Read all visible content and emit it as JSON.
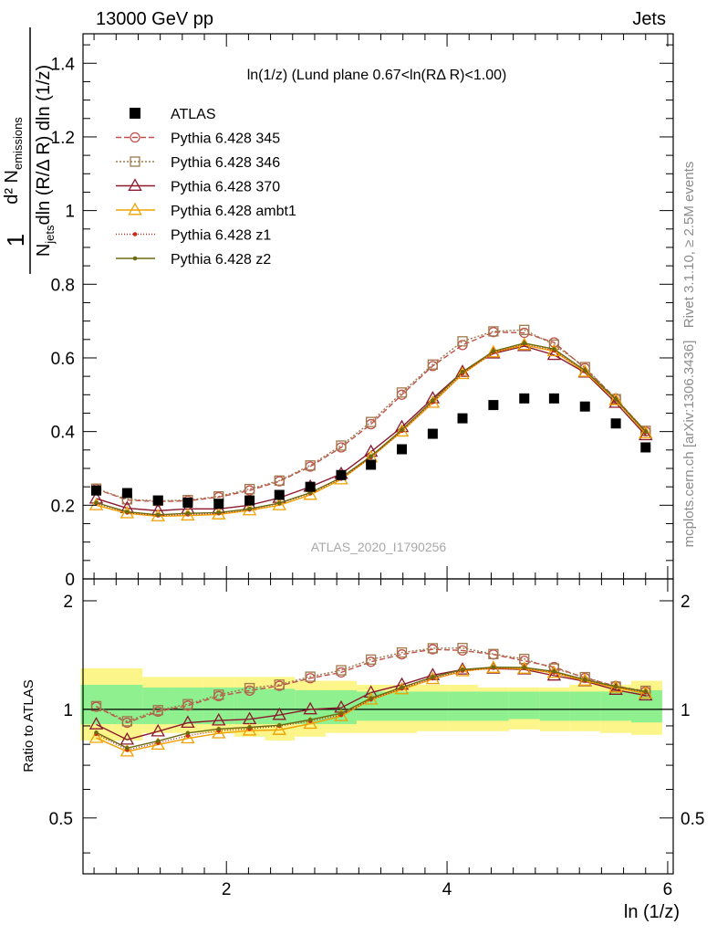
{
  "header": {
    "left": "13000 GeV pp",
    "right": "Jets"
  },
  "side_labels": {
    "rivet": "Rivet 3.1.10, ≥ 2.5M events",
    "mcplots": "mcplots.cern.ch [arXiv:1306.3436]"
  },
  "chart_data": {
    "type": "scatter",
    "title": "ln(1/z) (Lund plane 0.67<ln(RΔ R)<1.00)",
    "watermark": "ATLAS_2020_I1790256",
    "xlabel": "ln (1/z)",
    "ylabel_top": "1/N_jets d²N_emissions / dln(R/Δ R) dln (1/z)",
    "ylabel_ratio": "Ratio to ATLAS",
    "xlim": [
      0.7,
      6.05
    ],
    "ylim": [
      0,
      1.48
    ],
    "ratio_ylim": [
      0.35,
      2.3
    ],
    "x_ticks": [
      2,
      4,
      6
    ],
    "y_ticks": [
      0,
      0.2,
      0.4,
      0.6,
      0.8,
      1,
      1.2,
      1.4
    ],
    "ratio_ticks": [
      0.5,
      1,
      2
    ],
    "x": [
      0.82,
      1.1,
      1.38,
      1.65,
      1.93,
      2.21,
      2.48,
      2.76,
      3.04,
      3.31,
      3.59,
      3.87,
      4.14,
      4.42,
      4.7,
      4.97,
      5.25,
      5.53,
      5.8
    ],
    "bin_edges": [
      0.68,
      0.96,
      1.24,
      1.51,
      1.79,
      2.07,
      2.35,
      2.62,
      2.9,
      3.18,
      3.45,
      3.73,
      4.01,
      4.28,
      4.56,
      4.84,
      5.11,
      5.39,
      5.67,
      5.95
    ],
    "data": {
      "name": "ATLAS",
      "values": [
        0.24,
        0.233,
        0.213,
        0.207,
        0.204,
        0.213,
        0.228,
        0.25,
        0.282,
        0.31,
        0.352,
        0.394,
        0.436,
        0.472,
        0.49,
        0.49,
        0.468,
        0.422,
        0.357
      ]
    },
    "bands": {
      "outer": [
        1.3,
        1.3,
        1.23,
        1.23,
        1.23,
        1.23,
        1.23,
        1.2,
        1.2,
        1.17,
        1.17,
        1.17,
        1.17,
        1.15,
        1.15,
        1.15,
        1.17,
        1.17,
        1.2
      ],
      "outer_lo": [
        0.82,
        0.82,
        0.86,
        0.86,
        0.86,
        0.84,
        0.82,
        0.84,
        0.86,
        0.86,
        0.86,
        0.87,
        0.87,
        0.87,
        0.88,
        0.87,
        0.87,
        0.86,
        0.85
      ],
      "inner": [
        1.17,
        1.17,
        1.15,
        1.15,
        1.15,
        1.15,
        1.14,
        1.13,
        1.13,
        1.12,
        1.12,
        1.12,
        1.12,
        1.12,
        1.12,
        1.12,
        1.12,
        1.12,
        1.13
      ],
      "inner_lo": [
        0.91,
        0.91,
        0.91,
        0.91,
        0.91,
        0.91,
        0.91,
        0.91,
        0.91,
        0.93,
        0.93,
        0.93,
        0.93,
        0.93,
        0.94,
        0.93,
        0.93,
        0.93,
        0.92
      ]
    },
    "series": [
      {
        "name": "Pythia 6.428 345",
        "color": "#c0504d",
        "dash": "6,3",
        "marker": "circle",
        "values": [
          0.244,
          0.214,
          0.21,
          0.212,
          0.222,
          0.24,
          0.265,
          0.305,
          0.357,
          0.42,
          0.5,
          0.578,
          0.635,
          0.67,
          0.668,
          0.642,
          0.572,
          0.49,
          0.4
        ]
      },
      {
        "name": "Pythia 6.428 346",
        "color": "#a0784a",
        "dash": "2,2",
        "marker": "square",
        "values": [
          0.245,
          0.216,
          0.212,
          0.214,
          0.224,
          0.244,
          0.267,
          0.308,
          0.362,
          0.426,
          0.506,
          0.582,
          0.645,
          0.672,
          0.676,
          0.636,
          0.575,
          0.488,
          0.402
        ]
      },
      {
        "name": "Pythia 6.428 370",
        "color": "#8b1a2f",
        "dash": "",
        "marker": "triangle",
        "values": [
          0.218,
          0.192,
          0.185,
          0.19,
          0.19,
          0.2,
          0.22,
          0.25,
          0.285,
          0.345,
          0.412,
          0.49,
          0.562,
          0.612,
          0.632,
          0.608,
          0.56,
          0.478,
          0.39
        ]
      },
      {
        "name": "Pythia 6.428 ambt1",
        "color": "#f0a000",
        "dash": "",
        "marker": "triangle",
        "values": [
          0.2,
          0.178,
          0.17,
          0.172,
          0.175,
          0.186,
          0.2,
          0.228,
          0.27,
          0.33,
          0.4,
          0.478,
          0.556,
          0.615,
          0.635,
          0.618,
          0.562,
          0.485,
          0.395
        ]
      },
      {
        "name": "Pythia 6.428 z1",
        "color": "#cc2a1a",
        "dash": "1,2",
        "marker": "dot",
        "values": [
          0.205,
          0.18,
          0.172,
          0.175,
          0.178,
          0.188,
          0.205,
          0.232,
          0.272,
          0.33,
          0.402,
          0.48,
          0.558,
          0.615,
          0.638,
          0.62,
          0.565,
          0.487,
          0.398
        ]
      },
      {
        "name": "Pythia 6.428 z2",
        "color": "#6b6b10",
        "dash": "",
        "marker": "dot",
        "values": [
          0.207,
          0.182,
          0.174,
          0.178,
          0.18,
          0.19,
          0.206,
          0.234,
          0.275,
          0.333,
          0.405,
          0.484,
          0.562,
          0.618,
          0.64,
          0.624,
          0.566,
          0.488,
          0.4
        ]
      }
    ]
  }
}
